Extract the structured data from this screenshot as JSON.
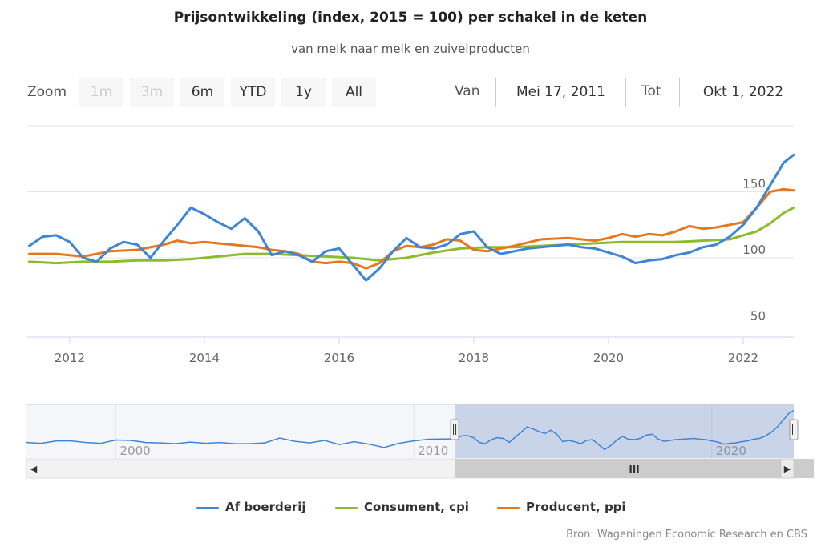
{
  "chart_data": {
    "type": "line",
    "title": "Prijsontwikkeling (index, 2015 = 100) per schakel in de keten",
    "subtitle": "van melk naar melk en zuivelproducten",
    "xlabel": "",
    "ylabel": "",
    "x_ticks": [
      "2012",
      "2014",
      "2016",
      "2018",
      "2020",
      "2022"
    ],
    "y_ticks": [
      50,
      100,
      150
    ],
    "ylim": [
      40,
      200
    ],
    "xlim": [
      2011.37,
      2022.75
    ],
    "grid": true,
    "legend_position": "bottom-center",
    "series": [
      {
        "name": "Af boerderij",
        "color": "#3d85d6",
        "x": [
          2011.4,
          2011.6,
          2011.8,
          2012.0,
          2012.2,
          2012.4,
          2012.6,
          2012.8,
          2013.0,
          2013.2,
          2013.4,
          2013.6,
          2013.8,
          2014.0,
          2014.2,
          2014.4,
          2014.6,
          2014.8,
          2015.0,
          2015.2,
          2015.4,
          2015.6,
          2015.8,
          2016.0,
          2016.2,
          2016.4,
          2016.6,
          2016.8,
          2017.0,
          2017.2,
          2017.4,
          2017.6,
          2017.8,
          2018.0,
          2018.2,
          2018.4,
          2018.6,
          2018.8,
          2019.0,
          2019.2,
          2019.4,
          2019.6,
          2019.8,
          2020.0,
          2020.2,
          2020.4,
          2020.6,
          2020.8,
          2021.0,
          2021.2,
          2021.4,
          2021.6,
          2021.8,
          2022.0,
          2022.2,
          2022.4,
          2022.6,
          2022.75
        ],
        "values": [
          109,
          116,
          117,
          112,
          100,
          97,
          107,
          112,
          110,
          100,
          113,
          125,
          138,
          133,
          127,
          122,
          130,
          120,
          102,
          105,
          102,
          97,
          105,
          107,
          95,
          83,
          92,
          105,
          115,
          108,
          107,
          110,
          118,
          120,
          108,
          103,
          105,
          107,
          108,
          109,
          110,
          108,
          107,
          104,
          101,
          96,
          98,
          99,
          102,
          104,
          108,
          110,
          116,
          125,
          138,
          155,
          172,
          178
        ]
      },
      {
        "name": "Consument, cpi",
        "color": "#8cbb2c",
        "x": [
          2011.4,
          2011.8,
          2012.2,
          2012.6,
          2013.0,
          2013.4,
          2013.8,
          2014.2,
          2014.6,
          2015.0,
          2015.4,
          2015.8,
          2016.2,
          2016.6,
          2017.0,
          2017.4,
          2017.8,
          2018.2,
          2018.6,
          2019.0,
          2019.4,
          2019.8,
          2020.2,
          2020.6,
          2021.0,
          2021.4,
          2021.8,
          2022.0,
          2022.2,
          2022.4,
          2022.6,
          2022.75
        ],
        "values": [
          97,
          96,
          97,
          97,
          98,
          98,
          99,
          101,
          103,
          103,
          102,
          101,
          100,
          98,
          100,
          104,
          107,
          108,
          108,
          109,
          110,
          111,
          112,
          112,
          112,
          113,
          114,
          117,
          120,
          126,
          134,
          138
        ]
      },
      {
        "name": "Producent, ppi",
        "color": "#e8761c",
        "x": [
          2011.4,
          2011.8,
          2012.2,
          2012.6,
          2013.0,
          2013.4,
          2013.6,
          2013.8,
          2014.0,
          2014.4,
          2014.8,
          2015.0,
          2015.2,
          2015.4,
          2015.6,
          2015.8,
          2016.0,
          2016.2,
          2016.4,
          2016.6,
          2016.8,
          2017.0,
          2017.2,
          2017.4,
          2017.6,
          2017.8,
          2018.0,
          2018.2,
          2018.6,
          2019.0,
          2019.4,
          2019.8,
          2020.0,
          2020.2,
          2020.4,
          2020.6,
          2020.8,
          2021.0,
          2021.2,
          2021.4,
          2021.6,
          2021.8,
          2022.0,
          2022.2,
          2022.4,
          2022.6,
          2022.75
        ],
        "values": [
          103,
          103,
          101,
          105,
          106,
          110,
          113,
          111,
          112,
          110,
          108,
          106,
          105,
          103,
          97,
          96,
          97,
          96,
          92,
          96,
          105,
          109,
          108,
          110,
          114,
          113,
          106,
          105,
          109,
          114,
          115,
          113,
          115,
          118,
          116,
          118,
          117,
          120,
          124,
          122,
          123,
          125,
          127,
          138,
          150,
          152,
          151
        ]
      }
    ]
  },
  "navigator": {
    "x_ticks": [
      "2000",
      "2010",
      "2020"
    ],
    "selected_from": 2011.37,
    "selected_to": 2022.75,
    "scrollbar_grip": "III",
    "left_arrow": "◀",
    "right_arrow": "▶"
  },
  "range_selector": {
    "zoom_label": "Zoom",
    "buttons": [
      "1m",
      "3m",
      "6m",
      "YTD",
      "1y",
      "All"
    ],
    "from_label": "Van",
    "from_value": "Mei 17, 2011",
    "to_label": "Tot",
    "to_value": "Okt 1, 2022"
  },
  "source": "Bron: Wageningen Economic Research en CBS"
}
